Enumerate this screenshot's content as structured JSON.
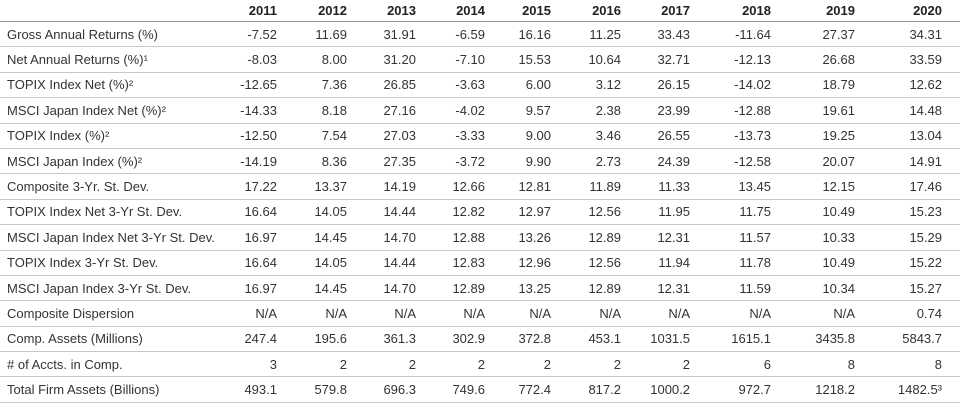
{
  "table": {
    "columns": [
      "2011",
      "2012",
      "2013",
      "2014",
      "2015",
      "2016",
      "2017",
      "2018",
      "2019",
      "2020"
    ],
    "rows": [
      {
        "label": "Gross Annual Returns (%)",
        "values": [
          "-7.52",
          "11.69",
          "31.91",
          "-6.59",
          "16.16",
          "11.25",
          "33.43",
          "-11.64",
          "27.37",
          "34.31"
        ]
      },
      {
        "label": "Net Annual Returns (%)¹",
        "values": [
          "-8.03",
          "8.00",
          "31.20",
          "-7.10",
          "15.53",
          "10.64",
          "32.71",
          "-12.13",
          "26.68",
          "33.59"
        ]
      },
      {
        "label": "TOPIX Index Net (%)²",
        "values": [
          "-12.65",
          "7.36",
          "26.85",
          "-3.63",
          "6.00",
          "3.12",
          "26.15",
          "-14.02",
          "18.79",
          "12.62"
        ]
      },
      {
        "label": "MSCI Japan Index Net (%)²",
        "values": [
          "-14.33",
          "8.18",
          "27.16",
          "-4.02",
          "9.57",
          "2.38",
          "23.99",
          "-12.88",
          "19.61",
          "14.48"
        ]
      },
      {
        "label": "TOPIX Index (%)²",
        "values": [
          "-12.50",
          "7.54",
          "27.03",
          "-3.33",
          "9.00",
          "3.46",
          "26.55",
          "-13.73",
          "19.25",
          "13.04"
        ]
      },
      {
        "label": "MSCI Japan Index (%)²",
        "values": [
          "-14.19",
          "8.36",
          "27.35",
          "-3.72",
          "9.90",
          "2.73",
          "24.39",
          "-12.58",
          "20.07",
          "14.91"
        ]
      },
      {
        "label": "Composite 3-Yr. St. Dev.",
        "values": [
          "17.22",
          "13.37",
          "14.19",
          "12.66",
          "12.81",
          "11.89",
          "11.33",
          "13.45",
          "12.15",
          "17.46"
        ]
      },
      {
        "label": "TOPIX Index Net 3-Yr St. Dev.",
        "values": [
          "16.64",
          "14.05",
          "14.44",
          "12.82",
          "12.97",
          "12.56",
          "11.95",
          "11.75",
          "10.49",
          "15.23"
        ]
      },
      {
        "label": "MSCI Japan Index Net 3-Yr St. Dev.",
        "values": [
          "16.97",
          "14.45",
          "14.70",
          "12.88",
          "13.26",
          "12.89",
          "12.31",
          "11.57",
          "10.33",
          "15.29"
        ]
      },
      {
        "label": "TOPIX Index 3-Yr St. Dev.",
        "values": [
          "16.64",
          "14.05",
          "14.44",
          "12.83",
          "12.96",
          "12.56",
          "11.94",
          "11.78",
          "10.49",
          "15.22"
        ]
      },
      {
        "label": "MSCI Japan Index 3-Yr St. Dev.",
        "values": [
          "16.97",
          "14.45",
          "14.70",
          "12.89",
          "13.25",
          "12.89",
          "12.31",
          "11.59",
          "10.34",
          "15.27"
        ]
      },
      {
        "label": "Composite Dispersion",
        "values": [
          "N/A",
          "N/A",
          "N/A",
          "N/A",
          "N/A",
          "N/A",
          "N/A",
          "N/A",
          "N/A",
          "0.74"
        ]
      },
      {
        "label": "Comp. Assets (Millions)",
        "values": [
          "247.4",
          "195.6",
          "361.3",
          "302.9",
          "372.8",
          "453.1",
          "1031.5",
          "1615.1",
          "3435.8",
          "5843.7"
        ]
      },
      {
        "label": "# of Accts. in Comp.",
        "values": [
          "3",
          "2",
          "2",
          "2",
          "2",
          "2",
          "2",
          "6",
          "8",
          "8"
        ]
      },
      {
        "label": "Total Firm Assets (Billions)",
        "values": [
          "493.1",
          "579.8",
          "696.3",
          "749.6",
          "772.4",
          "817.2",
          "1000.2",
          "972.7",
          "1218.2",
          "1482.5³"
        ]
      }
    ]
  }
}
